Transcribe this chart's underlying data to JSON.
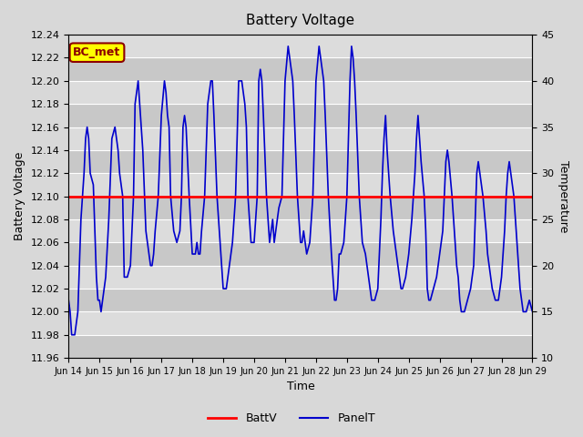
{
  "title": "Battery Voltage",
  "xlabel": "Time",
  "ylabel_left": "Battery Voltage",
  "ylabel_right": "Temperature",
  "xlim": [
    0,
    15
  ],
  "ylim_left": [
    11.96,
    12.24
  ],
  "ylim_right": [
    10,
    45
  ],
  "x_tick_labels": [
    "Jun 14",
    "Jun 15",
    "Jun 16",
    "Jun 17",
    "Jun 18",
    "Jun 19",
    "Jun 20",
    "Jun 21",
    "Jun 22",
    "Jun 23",
    "Jun 24",
    "Jun 25",
    "Jun 26",
    "Jun 27",
    "Jun 28",
    "Jun 29"
  ],
  "batt_v_value": 12.1,
  "batt_color": "#ff0000",
  "panel_color": "#0000cc",
  "bg_color": "#d8d8d8",
  "plot_bg_color": "#d8d8d8",
  "band_light": "#cccccc",
  "band_dark": "#e0e0e0",
  "label_color": "#8b0000",
  "annotation_text": "BC_met",
  "annotation_bg": "#ffff00",
  "annotation_border": "#8b0000",
  "panel_data_x": [
    0.0,
    0.05,
    0.1,
    0.2,
    0.3,
    0.4,
    0.5,
    0.55,
    0.6,
    0.65,
    0.7,
    0.8,
    0.9,
    0.95,
    1.0,
    1.05,
    1.1,
    1.2,
    1.3,
    1.4,
    1.5,
    1.6,
    1.65,
    1.7,
    1.75,
    1.8,
    1.9,
    2.0,
    2.1,
    2.15,
    2.2,
    2.25,
    2.3,
    2.4,
    2.5,
    2.6,
    2.65,
    2.7,
    2.75,
    2.8,
    2.9,
    3.0,
    3.1,
    3.15,
    3.2,
    3.25,
    3.3,
    3.4,
    3.5,
    3.6,
    3.65,
    3.7,
    3.75,
    3.8,
    3.9,
    4.0,
    4.1,
    4.15,
    4.2,
    4.25,
    4.3,
    4.4,
    4.5,
    4.55,
    4.6,
    4.65,
    4.7,
    4.8,
    4.9,
    5.0,
    5.1,
    5.15,
    5.2,
    5.25,
    5.3,
    5.4,
    5.5,
    5.6,
    5.65,
    5.7,
    5.75,
    5.8,
    5.9,
    6.0,
    6.1,
    6.15,
    6.2,
    6.25,
    6.3,
    6.4,
    6.5,
    6.55,
    6.6,
    6.65,
    6.7,
    6.8,
    6.9,
    7.0,
    7.1,
    7.15,
    7.2,
    7.25,
    7.3,
    7.4,
    7.5,
    7.55,
    7.6,
    7.65,
    7.7,
    7.8,
    7.9,
    8.0,
    8.1,
    8.15,
    8.2,
    8.25,
    8.3,
    8.4,
    8.5,
    8.6,
    8.65,
    8.7,
    8.75,
    8.8,
    8.9,
    9.0,
    9.1,
    9.15,
    9.2,
    9.25,
    9.3,
    9.4,
    9.5,
    9.6,
    9.65,
    9.7,
    9.75,
    9.8,
    9.9,
    10.0,
    10.1,
    10.15,
    10.2,
    10.25,
    10.3,
    10.4,
    10.5,
    10.6,
    10.65,
    10.7,
    10.75,
    10.8,
    10.9,
    11.0,
    11.1,
    11.15,
    11.2,
    11.25,
    11.3,
    11.4,
    11.5,
    11.55,
    11.6,
    11.65,
    11.7,
    11.8,
    11.9,
    12.0,
    12.1,
    12.15,
    12.2,
    12.25,
    12.3,
    12.4,
    12.5,
    12.55,
    12.6,
    12.65,
    12.7,
    12.8,
    12.9,
    13.0,
    13.1,
    13.15,
    13.2,
    13.25,
    13.3,
    13.4,
    13.5,
    13.55,
    13.6,
    13.65,
    13.7,
    13.8,
    13.9,
    14.0,
    14.1,
    14.15,
    14.2,
    14.25,
    14.3,
    14.4,
    14.5,
    14.55,
    14.6,
    14.65,
    14.7,
    14.8,
    14.9,
    15.0
  ],
  "panel_data_y": [
    12.01,
    12.0,
    11.98,
    11.98,
    12.0,
    12.08,
    12.12,
    12.15,
    12.16,
    12.15,
    12.12,
    12.11,
    12.03,
    12.01,
    12.01,
    12.0,
    12.01,
    12.03,
    12.08,
    12.15,
    12.16,
    12.14,
    12.12,
    12.11,
    12.1,
    12.03,
    12.03,
    12.04,
    12.1,
    12.18,
    12.19,
    12.2,
    12.18,
    12.14,
    12.07,
    12.05,
    12.04,
    12.04,
    12.05,
    12.07,
    12.1,
    12.17,
    12.2,
    12.19,
    12.17,
    12.16,
    12.1,
    12.07,
    12.06,
    12.07,
    12.1,
    12.16,
    12.17,
    12.16,
    12.1,
    12.05,
    12.05,
    12.06,
    12.05,
    12.05,
    12.07,
    12.1,
    12.18,
    12.19,
    12.2,
    12.2,
    12.17,
    12.1,
    12.06,
    12.02,
    12.02,
    12.03,
    12.04,
    12.05,
    12.06,
    12.1,
    12.2,
    12.2,
    12.19,
    12.18,
    12.16,
    12.1,
    12.06,
    12.06,
    12.1,
    12.2,
    12.21,
    12.2,
    12.17,
    12.1,
    12.06,
    12.07,
    12.08,
    12.06,
    12.07,
    12.09,
    12.1,
    12.2,
    12.23,
    12.22,
    12.21,
    12.2,
    12.17,
    12.1,
    12.06,
    12.06,
    12.07,
    12.06,
    12.05,
    12.06,
    12.1,
    12.2,
    12.23,
    12.22,
    12.21,
    12.2,
    12.17,
    12.1,
    12.05,
    12.01,
    12.01,
    12.02,
    12.05,
    12.05,
    12.06,
    12.1,
    12.2,
    12.23,
    12.22,
    12.2,
    12.17,
    12.1,
    12.06,
    12.05,
    12.04,
    12.03,
    12.02,
    12.01,
    12.01,
    12.02,
    12.08,
    12.12,
    12.15,
    12.17,
    12.14,
    12.1,
    12.07,
    12.05,
    12.04,
    12.03,
    12.02,
    12.02,
    12.03,
    12.05,
    12.08,
    12.1,
    12.12,
    12.15,
    12.17,
    12.13,
    12.1,
    12.07,
    12.02,
    12.01,
    12.01,
    12.02,
    12.03,
    12.05,
    12.07,
    12.1,
    12.13,
    12.14,
    12.13,
    12.1,
    12.06,
    12.04,
    12.03,
    12.01,
    12.0,
    12.0,
    12.01,
    12.02,
    12.04,
    12.08,
    12.12,
    12.13,
    12.12,
    12.1,
    12.07,
    12.05,
    12.04,
    12.03,
    12.02,
    12.01,
    12.01,
    12.03,
    12.07,
    12.1,
    12.12,
    12.13,
    12.12,
    12.1,
    12.06,
    12.04,
    12.02,
    12.01,
    12.0,
    12.0,
    12.01,
    12.0
  ]
}
